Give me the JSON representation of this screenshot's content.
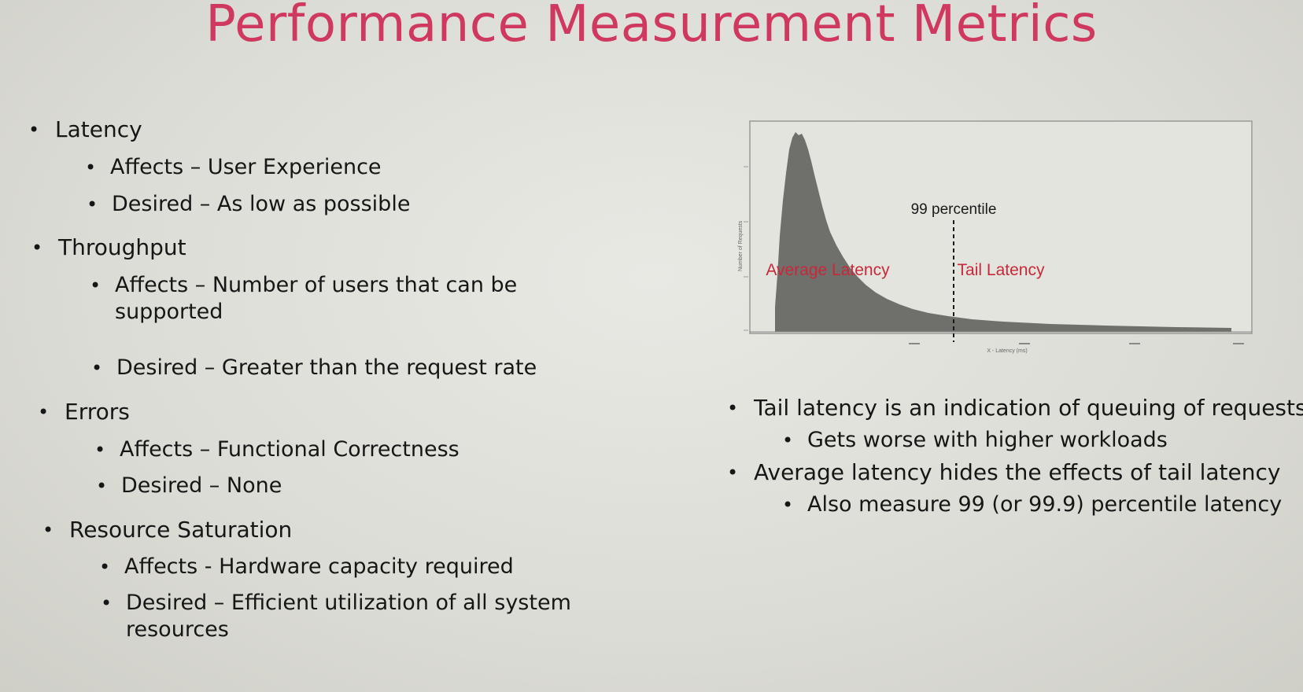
{
  "title": "Performance Measurement Metrics",
  "left": {
    "latency": {
      "label": "Latency",
      "affects": "Affects – User Experience",
      "desired": "Desired – As low as possible"
    },
    "throughput": {
      "label": "Throughput",
      "affects": "Affects – Number of users that can be supported",
      "desired": "Desired – Greater than the request rate"
    },
    "errors": {
      "label": "Errors",
      "affects": "Affects – Functional Correctness",
      "desired": "Desired – None"
    },
    "saturation": {
      "label": "Resource Saturation",
      "affects": "Affects - Hardware capacity required",
      "desired": "Desired – Efficient utilization of all system resources"
    }
  },
  "right": {
    "b1": "Tail latency is an indication of queuing of requests",
    "b1_sub": "Gets worse with higher workloads",
    "b2": "Average latency hides the effects of tail latency",
    "b2_sub": "Also measure 99 (or 99.9) percentile latency"
  },
  "chart_data": {
    "type": "area",
    "xlabel": "X - Latency (ms)",
    "ylabel": "Number of Requests",
    "annotations": [
      "99 percentile",
      "Average Latency",
      "Tail Latency"
    ],
    "marker_x_fraction": 0.355,
    "fill_color": "#6f6f6b",
    "annotation_color": "#c8283a"
  }
}
